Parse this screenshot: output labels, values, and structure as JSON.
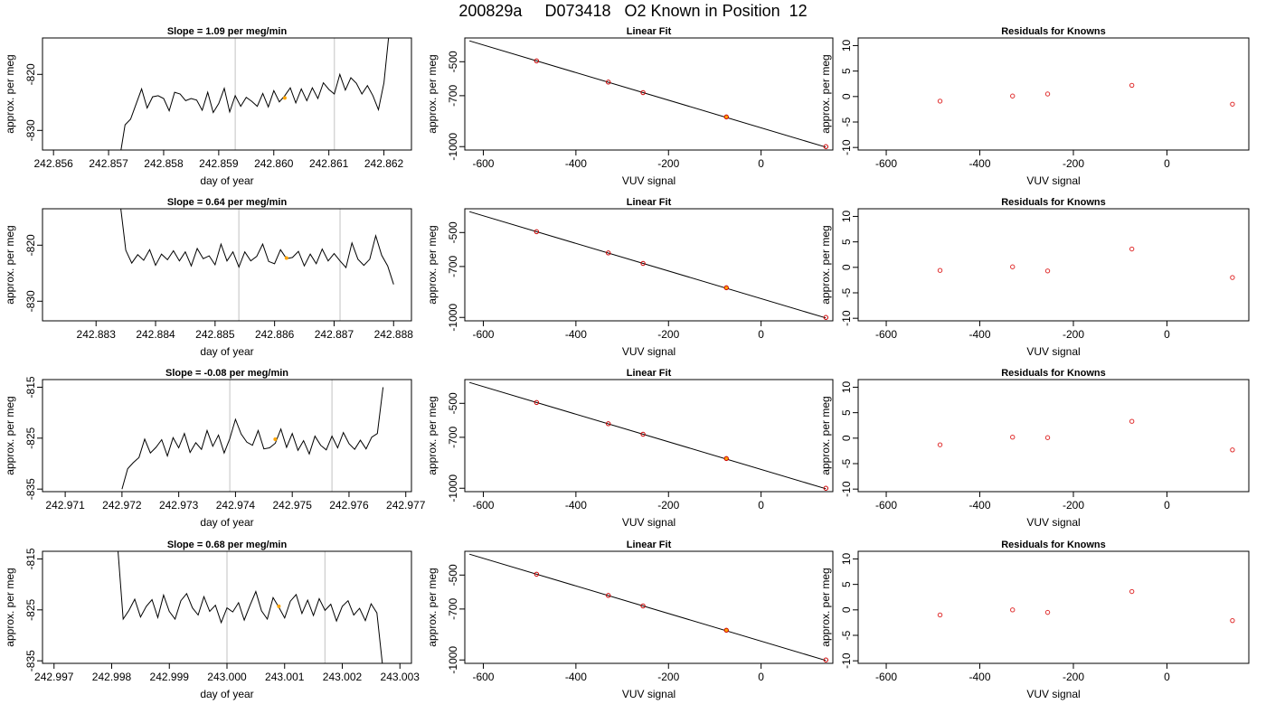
{
  "title": "200829a     D073418   O2 Known in Position  12",
  "colors": {
    "trace": "#000000",
    "vline": "#cccccc",
    "marker": "#ffa500",
    "resid": "#e03030",
    "fitpoint_outline": "#cc0000"
  },
  "chart_data": [
    {
      "type": "line",
      "title": "Slope =  1.09  per meg/min",
      "xlabel": "day of year",
      "ylabel": "approx. per meg",
      "xlim": [
        242.8558,
        242.8625
      ],
      "ylim": [
        -833.5,
        -813.5
      ],
      "xticks": [
        242.856,
        242.857,
        242.858,
        242.859,
        242.86,
        242.861,
        242.862
      ],
      "xtick_labels": [
        "242.856",
        "242.857",
        "242.858",
        "242.859",
        "242.860",
        "242.861",
        "242.862"
      ],
      "yticks": [
        -830,
        -820
      ],
      "ytick_labels": [
        "-830",
        "-820"
      ],
      "vlines": [
        242.8593,
        242.8611
      ],
      "marker": [
        242.8602,
        -824.2
      ],
      "series": [
        {
          "x": [
            242.8572,
            242.8573,
            242.8574,
            242.8576,
            242.8577,
            242.8578,
            242.8579,
            242.858,
            242.8581,
            242.8582,
            242.8583,
            242.8584,
            242.8585,
            242.8586,
            242.8587,
            242.8588,
            242.8589,
            242.859,
            242.8591,
            242.8592,
            242.8593,
            242.8594,
            242.8595,
            242.8596,
            242.8597,
            242.8598,
            242.8599,
            242.86,
            242.8601,
            242.8602,
            242.8603,
            242.8604,
            242.8605,
            242.8606,
            242.8607,
            242.8608,
            242.8609,
            242.861,
            242.8611,
            242.8612,
            242.8613,
            242.8614,
            242.8615,
            242.8616,
            242.8617,
            242.8618,
            242.8619,
            242.862,
            242.8621
          ],
          "y": [
            -835,
            -829,
            -828,
            -822.6,
            -826,
            -824,
            -823.8,
            -824.3,
            -826.5,
            -823.2,
            -823.5,
            -824.7,
            -824.3,
            -824.6,
            -826.4,
            -823.2,
            -826.8,
            -825.2,
            -822.5,
            -826.7,
            -823.8,
            -825.7,
            -824.1,
            -824.8,
            -825.7,
            -823.4,
            -825.8,
            -822.9,
            -824.9,
            -823.8,
            -822.4,
            -825.1,
            -822.6,
            -824.7,
            -822.4,
            -824.3,
            -821.5,
            -822.7,
            -823.5,
            -820,
            -822.8,
            -820.6,
            -821.6,
            -823.5,
            -822,
            -823.8,
            -826.3,
            -821.5,
            -812
          ]
        }
      ]
    },
    {
      "type": "line",
      "title": "Linear Fit",
      "xlabel": "VUV signal",
      "ylabel": "approx. per meg",
      "xlim": [
        -640,
        155
      ],
      "ylim": [
        -1020,
        -360
      ],
      "xticks": [
        -600,
        -400,
        -200,
        0
      ],
      "xtick_labels": [
        "-600",
        "-400",
        "-200",
        "0"
      ],
      "yticks": [
        -1000,
        -700,
        -500
      ],
      "ytick_labels": [
        "-1000",
        "-700",
        "-500"
      ],
      "fit_line": [
        [
          -630,
          -377
        ],
        [
          140,
          -1003
        ]
      ],
      "points": {
        "x": [
          -485,
          -330,
          -255,
          -75,
          140
        ],
        "y": [
          -495,
          -620,
          -682,
          -825,
          -1000
        ]
      }
    },
    {
      "type": "scatter",
      "title": "Residuals for Knowns",
      "xlabel": "VUV signal",
      "ylabel": "approx. per meg",
      "xlim": [
        -660,
        175
      ],
      "ylim": [
        -10.5,
        11.5
      ],
      "xticks": [
        -600,
        -400,
        -200,
        0
      ],
      "xtick_labels": [
        "-600",
        "-400",
        "-200",
        "0"
      ],
      "yticks": [
        -10,
        -5,
        0,
        5,
        10
      ],
      "ytick_labels": [
        "-10",
        "-5",
        "0",
        "5",
        "10"
      ],
      "x": [
        -485,
        -330,
        -255,
        -75,
        140
      ],
      "y": [
        -0.9,
        0.1,
        0.5,
        2.2,
        -1.5
      ]
    },
    {
      "type": "line",
      "title": "Slope =  0.64  per meg/min",
      "xlabel": "day of year",
      "ylabel": "approx. per meg",
      "xlim": [
        242.8821,
        242.8883
      ],
      "ylim": [
        -833.5,
        -813.5
      ],
      "xticks": [
        242.883,
        242.884,
        242.885,
        242.886,
        242.887,
        242.888
      ],
      "xtick_labels": [
        "242.883",
        "242.884",
        "242.885",
        "242.886",
        "242.887",
        "242.888"
      ],
      "yticks": [
        -830,
        -820
      ],
      "ytick_labels": [
        "-830",
        "-820"
      ],
      "vlines": [
        242.8854,
        242.8871
      ],
      "marker": [
        242.8862,
        -822.3
      ],
      "series": [
        {
          "x": [
            242.8834,
            242.8835,
            242.8836,
            242.8837,
            242.8838,
            242.8839,
            242.884,
            242.8841,
            242.8842,
            242.8843,
            242.8844,
            242.8845,
            242.8846,
            242.8847,
            242.8848,
            242.8849,
            242.885,
            242.8851,
            242.8852,
            242.8853,
            242.8854,
            242.8855,
            242.8856,
            242.8857,
            242.8858,
            242.8859,
            242.886,
            242.8861,
            242.8862,
            242.8863,
            242.8864,
            242.8865,
            242.8866,
            242.8867,
            242.8868,
            242.8869,
            242.887,
            242.8871,
            242.8872,
            242.8873,
            242.8874,
            242.8875,
            242.8876,
            242.8877,
            242.8878,
            242.8879,
            242.888
          ],
          "y": [
            -812,
            -820.9,
            -823.2,
            -821.7,
            -822.7,
            -820.8,
            -823.6,
            -821.6,
            -822.6,
            -821,
            -822.8,
            -821.2,
            -823.7,
            -820.6,
            -822.4,
            -821.9,
            -823.5,
            -819.8,
            -822.8,
            -821.2,
            -823.9,
            -821.2,
            -822.8,
            -822,
            -819.8,
            -822.9,
            -823.3,
            -820.8,
            -822.4,
            -822.2,
            -821.1,
            -823.7,
            -821.6,
            -823.3,
            -820.7,
            -822.8,
            -821.5,
            -822.8,
            -824,
            -819.6,
            -822.5,
            -823.6,
            -822.5,
            -818.3,
            -821.8,
            -823.7,
            -827
          ]
        }
      ]
    },
    {
      "type": "line",
      "title": "Linear Fit",
      "xlabel": "VUV signal",
      "ylabel": "approx. per meg",
      "xlim": [
        -640,
        155
      ],
      "ylim": [
        -1020,
        -360
      ],
      "xticks": [
        -600,
        -400,
        -200,
        0
      ],
      "xtick_labels": [
        "-600",
        "-400",
        "-200",
        "0"
      ],
      "yticks": [
        -1000,
        -700,
        -500
      ],
      "ytick_labels": [
        "-1000",
        "-700",
        "-500"
      ],
      "fit_line": [
        [
          -630,
          -377
        ],
        [
          140,
          -1003
        ]
      ],
      "points": {
        "x": [
          -485,
          -330,
          -255,
          -75,
          140
        ],
        "y": [
          -495,
          -620,
          -682,
          -825,
          -1000
        ]
      }
    },
    {
      "type": "scatter",
      "title": "Residuals for Knowns",
      "xlabel": "VUV signal",
      "ylabel": "approx. per meg",
      "xlim": [
        -660,
        175
      ],
      "ylim": [
        -10.5,
        11.5
      ],
      "xticks": [
        -600,
        -400,
        -200,
        0
      ],
      "xtick_labels": [
        "-600",
        "-400",
        "-200",
        "0"
      ],
      "yticks": [
        -10,
        -5,
        0,
        5,
        10
      ],
      "ytick_labels": [
        "-10",
        "-5",
        "0",
        "5",
        "10"
      ],
      "x": [
        -485,
        -330,
        -255,
        -75,
        140
      ],
      "y": [
        -0.6,
        0.1,
        -0.7,
        3.6,
        -2
      ]
    },
    {
      "type": "line",
      "title": "Slope =  -0.08  per meg/min",
      "xlabel": "day of year",
      "ylabel": "approx. per meg",
      "xlim": [
        242.9706,
        242.9771
      ],
      "ylim": [
        -835.5,
        -813.5
      ],
      "xticks": [
        242.971,
        242.972,
        242.973,
        242.974,
        242.975,
        242.976,
        242.977
      ],
      "xtick_labels": [
        "242.971",
        "242.972",
        "242.973",
        "242.974",
        "242.975",
        "242.976",
        "242.977"
      ],
      "yticks": [
        -835,
        -825,
        -815
      ],
      "ytick_labels": [
        "-835",
        "-825",
        "-815"
      ],
      "vlines": [
        242.9739,
        242.9757
      ],
      "marker": [
        242.9747,
        -825.2
      ],
      "series": [
        {
          "x": [
            242.972,
            242.9721,
            242.9722,
            242.9723,
            242.9724,
            242.9725,
            242.9726,
            242.9727,
            242.9728,
            242.9729,
            242.973,
            242.9731,
            242.9732,
            242.9733,
            242.9734,
            242.9735,
            242.9736,
            242.9737,
            242.9738,
            242.9739,
            242.974,
            242.9741,
            242.9742,
            242.9743,
            242.9744,
            242.9745,
            242.9746,
            242.9747,
            242.9748,
            242.9749,
            242.975,
            242.9751,
            242.9752,
            242.9753,
            242.9754,
            242.9755,
            242.9756,
            242.9757,
            242.9758,
            242.9759,
            242.976,
            242.9761,
            242.9762,
            242.9763,
            242.9764,
            242.9765,
            242.9766
          ],
          "y": [
            -835,
            -831,
            -829.8,
            -828.8,
            -825.2,
            -827.9,
            -826.8,
            -825.3,
            -828.5,
            -824.9,
            -826.9,
            -824.1,
            -827.8,
            -825.9,
            -827.2,
            -823.5,
            -826.6,
            -824.4,
            -827.9,
            -825.1,
            -821.3,
            -824.2,
            -825.8,
            -826.4,
            -823.5,
            -827.1,
            -826.9,
            -826,
            -823.2,
            -826.8,
            -824.1,
            -827.4,
            -825.5,
            -828.1,
            -824.6,
            -826.4,
            -827.3,
            -824.6,
            -826.9,
            -823.9,
            -826.1,
            -827.2,
            -825.4,
            -827.1,
            -824.8,
            -824.1,
            -815
          ]
        }
      ]
    },
    {
      "type": "line",
      "title": "Linear Fit",
      "xlabel": "VUV signal",
      "ylabel": "approx. per meg",
      "xlim": [
        -640,
        155
      ],
      "ylim": [
        -1020,
        -360
      ],
      "xticks": [
        -600,
        -400,
        -200,
        0
      ],
      "xtick_labels": [
        "-600",
        "-400",
        "-200",
        "0"
      ],
      "yticks": [
        -1000,
        -700,
        -500
      ],
      "ytick_labels": [
        "-1000",
        "-700",
        "-500"
      ],
      "fit_line": [
        [
          -630,
          -377
        ],
        [
          140,
          -1003
        ]
      ],
      "points": {
        "x": [
          -485,
          -330,
          -255,
          -75,
          140
        ],
        "y": [
          -495,
          -620,
          -682,
          -825,
          -1000
        ]
      }
    },
    {
      "type": "scatter",
      "title": "Residuals for Knowns",
      "xlabel": "VUV signal",
      "ylabel": "approx. per meg",
      "xlim": [
        -660,
        175
      ],
      "ylim": [
        -10.5,
        11.5
      ],
      "xticks": [
        -600,
        -400,
        -200,
        0
      ],
      "xtick_labels": [
        "-600",
        "-400",
        "-200",
        "0"
      ],
      "yticks": [
        -10,
        -5,
        0,
        5,
        10
      ],
      "ytick_labels": [
        "-10",
        "-5",
        "0",
        "5",
        "10"
      ],
      "x": [
        -485,
        -330,
        -255,
        -75,
        140
      ],
      "y": [
        -1.3,
        0.2,
        0.1,
        3.3,
        -2.3
      ]
    },
    {
      "type": "line",
      "title": "Slope =  0.68  per meg/min",
      "xlabel": "day of year",
      "ylabel": "approx. per meg",
      "xlim": [
        242.9968,
        243.0032
      ],
      "ylim": [
        -835.5,
        -813.5
      ],
      "xticks": [
        242.997,
        242.998,
        242.999,
        243.0,
        243.001,
        243.002,
        243.003
      ],
      "xtick_labels": [
        "242.997",
        "242.998",
        "242.999",
        "243.000",
        "243.001",
        "243.002",
        "243.003"
      ],
      "yticks": [
        -835,
        -825,
        -815
      ],
      "ytick_labels": [
        "-835",
        "-825",
        "-815"
      ],
      "vlines": [
        243.0,
        243.0017
      ],
      "marker": [
        243.0009,
        -824.3
      ],
      "series": [
        {
          "x": [
            242.9981,
            242.9982,
            242.9983,
            242.9984,
            242.9985,
            242.9986,
            242.9987,
            242.9988,
            242.9989,
            242.999,
            242.9991,
            242.9992,
            242.9993,
            242.9994,
            242.9995,
            242.9996,
            242.9997,
            242.9998,
            242.9999,
            243.0,
            243.0001,
            243.0002,
            243.0003,
            243.0004,
            243.0005,
            243.0006,
            243.0007,
            243.0008,
            243.0009,
            243.001,
            243.0011,
            243.0012,
            243.0013,
            243.0014,
            243.0015,
            243.0016,
            243.0017,
            243.0018,
            243.0019,
            243.002,
            243.0021,
            243.0022,
            243.0023,
            243.0024,
            243.0025,
            243.0026,
            243.0027
          ],
          "y": [
            -812,
            -826.8,
            -825.1,
            -822.9,
            -826.4,
            -824.3,
            -823,
            -826.5,
            -822.1,
            -825.3,
            -826.8,
            -823.2,
            -821.8,
            -824.6,
            -826,
            -822.4,
            -825.3,
            -824.1,
            -827.5,
            -824.6,
            -825.4,
            -823.6,
            -827,
            -824.1,
            -821.4,
            -825.2,
            -826.8,
            -822.6,
            -824.5,
            -826.6,
            -823.3,
            -822,
            -825.7,
            -823.1,
            -826.1,
            -822.8,
            -825.1,
            -823.9,
            -827.2,
            -824.3,
            -823.2,
            -826,
            -824.7,
            -827.1,
            -823.8,
            -825.6,
            -836
          ]
        }
      ]
    },
    {
      "type": "line",
      "title": "Linear Fit",
      "xlabel": "VUV signal",
      "ylabel": "approx. per meg",
      "xlim": [
        -640,
        155
      ],
      "ylim": [
        -1020,
        -360
      ],
      "xticks": [
        -600,
        -400,
        -200,
        0
      ],
      "xtick_labels": [
        "-600",
        "-400",
        "-200",
        "0"
      ],
      "yticks": [
        -1000,
        -700,
        -500
      ],
      "ytick_labels": [
        "-1000",
        "-700",
        "-500"
      ],
      "fit_line": [
        [
          -630,
          -377
        ],
        [
          140,
          -1003
        ]
      ],
      "points": {
        "x": [
          -485,
          -330,
          -255,
          -75,
          140
        ],
        "y": [
          -495,
          -620,
          -682,
          -825,
          -1000
        ]
      }
    },
    {
      "type": "scatter",
      "title": "Residuals for Knowns",
      "xlabel": "VUV signal",
      "ylabel": "approx. per meg",
      "xlim": [
        -660,
        175
      ],
      "ylim": [
        -10.5,
        11.5
      ],
      "xticks": [
        -600,
        -400,
        -200,
        0
      ],
      "xtick_labels": [
        "-600",
        "-400",
        "-200",
        "0"
      ],
      "yticks": [
        -10,
        -5,
        0,
        5,
        10
      ],
      "ytick_labels": [
        "-10",
        "-5",
        "0",
        "5",
        "10"
      ],
      "x": [
        -485,
        -330,
        -255,
        -75,
        140
      ],
      "y": [
        -1,
        0,
        -0.5,
        3.6,
        -2.1
      ]
    }
  ]
}
